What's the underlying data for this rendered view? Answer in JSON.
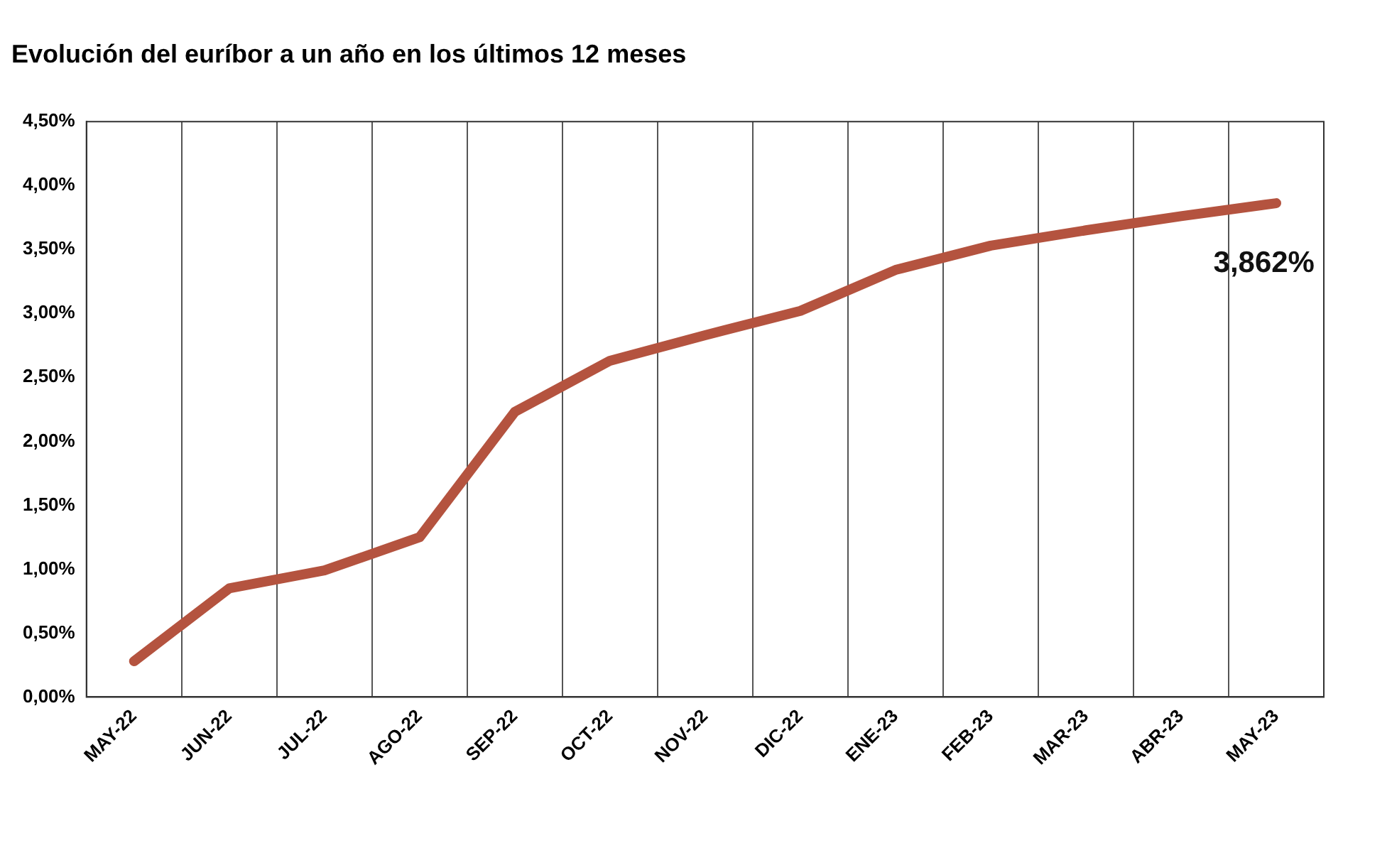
{
  "chart_data": {
    "type": "line",
    "title": "Evolución del euríbor a un año en los últimos 12 meses",
    "categories": [
      "MAY-22",
      "JUN-22",
      "JUL-22",
      "AGO-22",
      "SEP-22",
      "OCT-22",
      "NOV-22",
      "DIC-22",
      "ENE-23",
      "FEB-23",
      "MAR-23",
      "ABR-23",
      "MAY-23"
    ],
    "series": [
      {
        "color": "#b4533f",
        "values": [
          0.28,
          0.85,
          0.99,
          1.25,
          2.23,
          2.63,
          2.83,
          3.02,
          3.34,
          3.53,
          3.65,
          3.76,
          3.862
        ]
      }
    ],
    "ylim": [
      0,
      4.5
    ],
    "yticks": [
      {
        "value": 0,
        "label": "0,00%"
      },
      {
        "value": 0.5,
        "label": "0,50%"
      },
      {
        "value": 1,
        "label": "1,00%"
      },
      {
        "value": 1.5,
        "label": "1,50%"
      },
      {
        "value": 2,
        "label": "2,00%"
      },
      {
        "value": 2.5,
        "label": "2,50%"
      },
      {
        "value": 3,
        "label": "3,00%"
      },
      {
        "value": 3.5,
        "label": "3,50%"
      },
      {
        "value": 4,
        "label": "4,00%"
      },
      {
        "value": 4.5,
        "label": "4,50%"
      }
    ],
    "grid": "x",
    "legend": false,
    "marker": "none",
    "line_style": "solid",
    "annotations": [
      {
        "text": "3,862%",
        "x": "MAY-23",
        "y": 3.862
      }
    ]
  }
}
